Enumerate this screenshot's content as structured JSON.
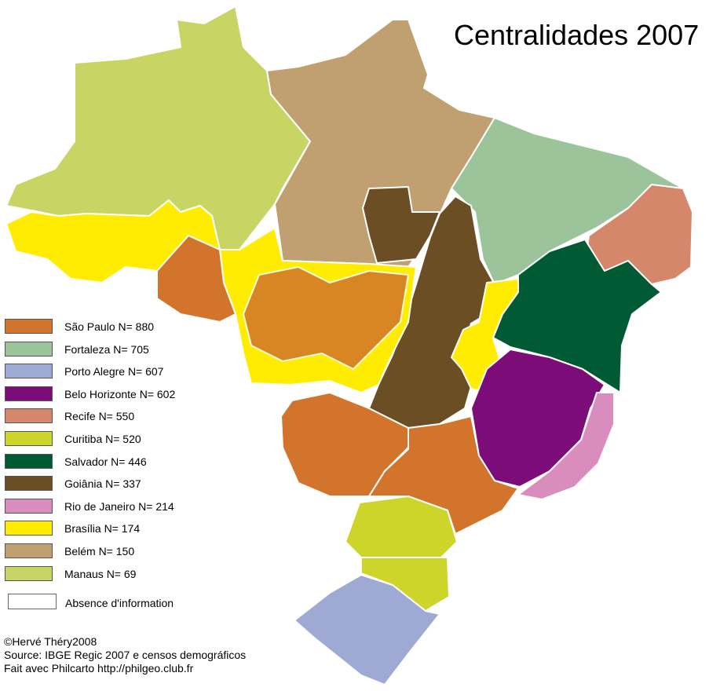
{
  "title": "Centralidades 2007",
  "legend": [
    {
      "label": "São Paulo N= 880",
      "color": "#d2742b"
    },
    {
      "label": "Fortaleza N= 705",
      "color": "#9cc49a"
    },
    {
      "label": "Porto Alegre  N= 607",
      "color": "#9eaad3"
    },
    {
      "label": "Belo Horizonte N= 602",
      "color": "#7b0c78"
    },
    {
      "label": "Recife N= 550",
      "color": "#d4876a"
    },
    {
      "label": "Curitiba N= 520",
      "color": "#cdd42a"
    },
    {
      "label": "Salvador N= 446",
      "color": "#005a34"
    },
    {
      "label": "Goiânia N= 337",
      "color": "#6b4e24"
    },
    {
      "label": "Rio de Janeiro N= 214",
      "color": "#d98cbe"
    },
    {
      "label": "Brasília N= 174",
      "color": "#ffec00"
    },
    {
      "label": "Belém N= 150",
      "color": "#c0a070"
    },
    {
      "label": "Manaus N= 69",
      "color": "#c8d464"
    }
  ],
  "absence": {
    "label": "Absence d'information",
    "color": "#ffffff"
  },
  "credits": {
    "author": "©Hervé Théry2008",
    "source": "Source: IBGE Regic 2007 e censos demográficos",
    "tool": "Fait avec Philcarto http://philgeo.club.fr"
  }
}
